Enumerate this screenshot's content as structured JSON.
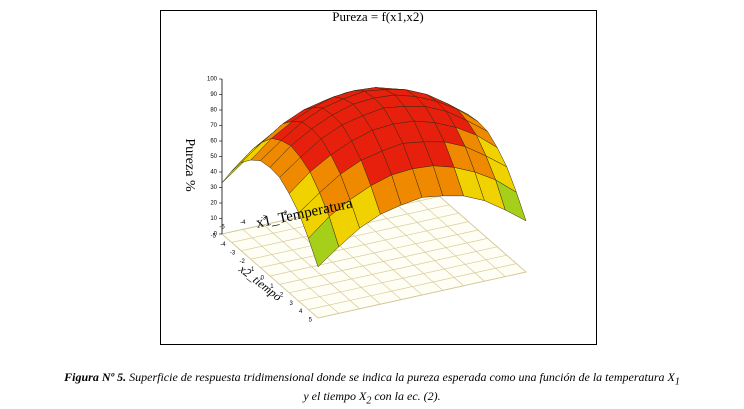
{
  "chart_data": {
    "type": "surface3d",
    "title": "Pureza = f(x1,x2)",
    "xlabel": "x1_Temperatura",
    "ylabel": "x2_tiempo",
    "zlabel": "Pureza %",
    "xlim": [
      -5,
      5
    ],
    "xticks": [
      -5,
      -4,
      -3,
      -2,
      -1,
      0,
      1,
      2,
      3,
      4,
      5
    ],
    "ylim": [
      -5,
      5
    ],
    "yticks": [
      -5,
      -4,
      -3,
      -2,
      -1,
      0,
      1,
      2,
      3,
      4,
      5
    ],
    "zlim": [
      0,
      100
    ],
    "zticks": [
      0,
      10,
      20,
      30,
      40,
      50,
      60,
      70,
      80,
      90,
      100
    ],
    "grid": true,
    "colormap": [
      "#2a9a2a",
      "#a6cf1a",
      "#f0d200",
      "#ef8a00",
      "#e6200c"
    ],
    "z": [
      [
        33,
        43,
        52,
        58,
        61,
        63,
        61,
        58,
        52,
        43,
        33
      ],
      [
        46,
        57,
        65,
        71,
        75,
        76,
        75,
        71,
        65,
        57,
        46
      ],
      [
        57,
        67,
        76,
        82,
        85,
        87,
        85,
        82,
        76,
        67,
        57
      ],
      [
        64,
        75,
        83,
        89,
        93,
        94,
        93,
        89,
        83,
        75,
        64
      ],
      [
        69,
        79,
        88,
        94,
        97,
        99,
        97,
        94,
        88,
        79,
        69
      ],
      [
        70,
        81,
        89,
        95,
        99,
        100,
        99,
        95,
        89,
        81,
        70
      ],
      [
        69,
        79,
        88,
        94,
        97,
        99,
        97,
        94,
        88,
        79,
        69
      ],
      [
        64,
        75,
        83,
        89,
        93,
        94,
        93,
        89,
        83,
        75,
        64
      ],
      [
        57,
        67,
        76,
        82,
        85,
        87,
        85,
        82,
        76,
        67,
        57
      ],
      [
        46,
        57,
        65,
        71,
        75,
        76,
        75,
        71,
        65,
        57,
        46
      ],
      [
        33,
        43,
        52,
        58,
        61,
        63,
        61,
        58,
        52,
        43,
        33
      ]
    ]
  },
  "caption": {
    "label": "Figura Nº 5.",
    "line1": "Superficie de respuesta tridimensional donde se indica la pureza esperada como una función de la temperatura X",
    "sub1": "1",
    "line2a": "y el tiempo X",
    "sub2": "2",
    "line2b": "con la ec. (2)."
  }
}
